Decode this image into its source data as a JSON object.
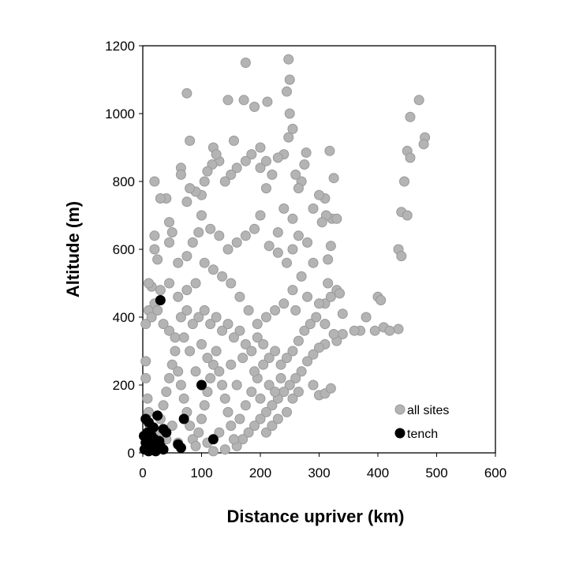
{
  "chart_data": {
    "type": "scatter",
    "xlabel": "Distance upriver (km)",
    "ylabel": "Altitude (m)",
    "xlim": [
      0,
      600
    ],
    "ylim": [
      0,
      1200
    ],
    "xticks": [
      0,
      100,
      200,
      300,
      400,
      500,
      600
    ],
    "yticks": [
      0,
      200,
      400,
      600,
      800,
      1000,
      1200
    ],
    "legend": "lower right",
    "series": [
      {
        "name": "all sites",
        "color": "#b4b4b4",
        "x": [
          175,
          248,
          250,
          245,
          75,
          145,
          172,
          212,
          190,
          250,
          255,
          248,
          80,
          155,
          240,
          120,
          200,
          278,
          318,
          470,
          480,
          478,
          455,
          450,
          455,
          445,
          440,
          450,
          435,
          440,
          400,
          405,
          380,
          410,
          435,
          420,
          395,
          370,
          360,
          340,
          330,
          310,
          300,
          290,
          280,
          270,
          260,
          250,
          240,
          230,
          220,
          210,
          200,
          190,
          180,
          170,
          160,
          140,
          120,
          300,
          310,
          320,
          290,
          315,
          320,
          322,
          330,
          325,
          310,
          312,
          300,
          305,
          290,
          270,
          275,
          260,
          265,
          240,
          255,
          230,
          230,
          220,
          210,
          200,
          210,
          185,
          175,
          160,
          150,
          140,
          130,
          125,
          118,
          110,
          105,
          100,
          90,
          80,
          75,
          65,
          65,
          40,
          30,
          20,
          20,
          20,
          25,
          45,
          50,
          45,
          60,
          75,
          85,
          95,
          100,
          115,
          130,
          145,
          160,
          175,
          190,
          200,
          215,
          230,
          245,
          255,
          265,
          280,
          290,
          270,
          255,
          240,
          225,
          210,
          195,
          180,
          165,
          150,
          135,
          120,
          105,
          90,
          75,
          60,
          45,
          30,
          15,
          10,
          5,
          10,
          15,
          20,
          25,
          35,
          45,
          55,
          65,
          75,
          85,
          95,
          105,
          115,
          125,
          135,
          145,
          155,
          165,
          175,
          185,
          195,
          205,
          215,
          225,
          235,
          245,
          255,
          265,
          275,
          285,
          295,
          310,
          320,
          330,
          315,
          300,
          280,
          260,
          340,
          335,
          310,
          325,
          5,
          5,
          8,
          10,
          12,
          15,
          20,
          25,
          30,
          35,
          40,
          45,
          50,
          55,
          60,
          65,
          70,
          75,
          80,
          85,
          90,
          95,
          100,
          105,
          110,
          115,
          120,
          125,
          130,
          135,
          140,
          145,
          150,
          155,
          165,
          175,
          185,
          195,
          205,
          215,
          225,
          235,
          245,
          255,
          265,
          210,
          220,
          230,
          60,
          40,
          50,
          110,
          130,
          80,
          100,
          70,
          90,
          110,
          150,
          160,
          170,
          190,
          200
        ],
        "values": [
          1150,
          1160,
          1100,
          1065,
          1060,
          1040,
          1040,
          1035,
          1020,
          1000,
          955,
          930,
          920,
          920,
          880,
          900,
          900,
          885,
          890,
          1040,
          930,
          910,
          990,
          890,
          870,
          800,
          710,
          700,
          600,
          580,
          460,
          450,
          400,
          370,
          365,
          360,
          360,
          360,
          360,
          350,
          330,
          320,
          310,
          290,
          270,
          240,
          220,
          200,
          180,
          160,
          140,
          120,
          100,
          80,
          60,
          40,
          20,
          10,
          5,
          170,
          175,
          190,
          200,
          570,
          610,
          690,
          690,
          810,
          750,
          700,
          760,
          680,
          720,
          800,
          850,
          820,
          780,
          720,
          690,
          650,
          870,
          820,
          780,
          840,
          860,
          880,
          860,
          840,
          820,
          800,
          860,
          880,
          850,
          830,
          800,
          760,
          770,
          780,
          740,
          840,
          820,
          750,
          750,
          800,
          640,
          600,
          570,
          680,
          650,
          620,
          560,
          580,
          620,
          650,
          700,
          660,
          640,
          600,
          620,
          640,
          660,
          700,
          610,
          590,
          560,
          600,
          640,
          620,
          560,
          520,
          480,
          440,
          420,
          400,
          380,
          420,
          460,
          500,
          520,
          540,
          560,
          500,
          480,
          460,
          500,
          480,
          490,
          500,
          380,
          420,
          400,
          440,
          420,
          380,
          360,
          340,
          400,
          420,
          380,
          400,
          420,
          380,
          400,
          360,
          380,
          340,
          360,
          320,
          300,
          340,
          320,
          280,
          300,
          260,
          280,
          300,
          330,
          360,
          380,
          400,
          440,
          460,
          480,
          500,
          440,
          460,
          420,
          410,
          470,
          380,
          350,
          270,
          220,
          160,
          120,
          80,
          40,
          20,
          60,
          100,
          140,
          180,
          220,
          260,
          300,
          240,
          200,
          160,
          120,
          80,
          40,
          20,
          60,
          100,
          140,
          180,
          220,
          260,
          300,
          240,
          200,
          160,
          120,
          80,
          40,
          100,
          140,
          180,
          220,
          260,
          200,
          180,
          220,
          120,
          160,
          180,
          60,
          80,
          100,
          30,
          40,
          80,
          30,
          60,
          300,
          320,
          340,
          240,
          280,
          260,
          200,
          280,
          240,
          160
        ]
      },
      {
        "name": "tench",
        "color": "#000000",
        "x": [
          30,
          100,
          70,
          120,
          5,
          10,
          25,
          35,
          8,
          15,
          20,
          5,
          12,
          3,
          30,
          40,
          18,
          22,
          2,
          28,
          65,
          60,
          10,
          35,
          15
        ],
        "values": [
          450,
          200,
          100,
          40,
          100,
          90,
          110,
          70,
          60,
          50,
          40,
          30,
          20,
          10,
          20,
          60,
          75,
          5,
          50,
          35,
          15,
          25,
          5,
          10,
          30
        ]
      }
    ]
  }
}
